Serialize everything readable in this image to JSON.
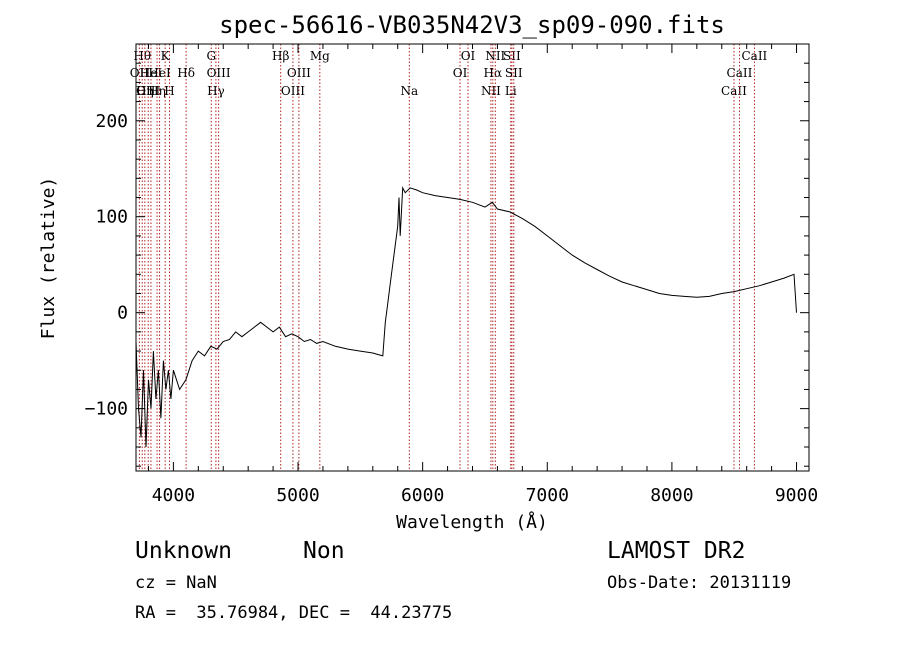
{
  "chart_data": {
    "type": "line",
    "title": "spec-56616-VB035N42V3_sp09-090.fits",
    "xlabel": "Wavelength (Å)",
    "ylabel": "Flux (relative)",
    "xlim": [
      3700,
      9100
    ],
    "ylim": [
      -165,
      280
    ],
    "xticks": [
      4000,
      5000,
      6000,
      7000,
      8000,
      9000
    ],
    "yticks": [
      -100,
      0,
      100,
      200
    ],
    "x_tick_labels": [
      "4000",
      "5000",
      "6000",
      "7000",
      "8000",
      "9000"
    ],
    "y_tick_labels": [
      "−100",
      "0",
      "100",
      "200"
    ],
    "grid": false,
    "line_color": "#000000",
    "marker_color": "#b22222",
    "spectrum": {
      "x": [
        3700,
        3720,
        3740,
        3760,
        3780,
        3800,
        3820,
        3840,
        3860,
        3880,
        3900,
        3920,
        3940,
        3960,
        3980,
        4000,
        4050,
        4100,
        4150,
        4200,
        4250,
        4300,
        4350,
        4400,
        4450,
        4500,
        4550,
        4600,
        4650,
        4700,
        4750,
        4800,
        4850,
        4900,
        4950,
        5000,
        5050,
        5100,
        5150,
        5200,
        5300,
        5400,
        5500,
        5600,
        5680,
        5700,
        5720,
        5740,
        5760,
        5780,
        5800,
        5810,
        5820,
        5840,
        5860,
        5900,
        5950,
        6000,
        6100,
        6200,
        6300,
        6400,
        6500,
        6560,
        6600,
        6700,
        6800,
        6900,
        7000,
        7100,
        7200,
        7300,
        7400,
        7500,
        7600,
        7700,
        7800,
        7900,
        8000,
        8100,
        8200,
        8300,
        8400,
        8500,
        8600,
        8700,
        8800,
        8900,
        8980,
        9000
      ],
      "y": [
        -30,
        -100,
        -130,
        -60,
        -140,
        -70,
        -100,
        -40,
        -90,
        -60,
        -110,
        -50,
        -80,
        -60,
        -90,
        -60,
        -80,
        -70,
        -50,
        -40,
        -45,
        -35,
        -38,
        -30,
        -28,
        -20,
        -25,
        -20,
        -15,
        -10,
        -15,
        -20,
        -15,
        -25,
        -22,
        -25,
        -30,
        -28,
        -32,
        -30,
        -35,
        -38,
        -40,
        -42,
        -45,
        -10,
        10,
        30,
        50,
        70,
        90,
        120,
        80,
        130,
        125,
        130,
        128,
        125,
        122,
        120,
        118,
        115,
        110,
        115,
        108,
        105,
        98,
        90,
        80,
        70,
        60,
        52,
        45,
        38,
        32,
        28,
        24,
        20,
        18,
        17,
        16,
        17,
        20,
        22,
        25,
        28,
        32,
        36,
        40,
        0
      ]
    },
    "lines": [
      {
        "x": 3727,
        "label": "OII",
        "row": 1
      },
      {
        "x": 3750,
        "label": "Hθ",
        "row": 0
      },
      {
        "x": 3771,
        "label": "Hη",
        "row": 2
      },
      {
        "x": 3798,
        "label": "OIII",
        "row": 2
      },
      {
        "x": 3820,
        "label": "HeI",
        "row": 1
      },
      {
        "x": 3869,
        "label": "Hη",
        "row": 2
      },
      {
        "x": 3889,
        "label": "HeI",
        "row": 1
      },
      {
        "x": 3934,
        "label": "K",
        "row": 0
      },
      {
        "x": 3969,
        "label": "H",
        "row": 2
      },
      {
        "x": 4102,
        "label": "Hδ",
        "row": 1
      },
      {
        "x": 4304,
        "label": "G",
        "row": 0
      },
      {
        "x": 4341,
        "label": "Hγ",
        "row": 2
      },
      {
        "x": 4363,
        "label": "OIII",
        "row": 1
      },
      {
        "x": 4861,
        "label": "Hβ",
        "row": 0
      },
      {
        "x": 4959,
        "label": "OIII",
        "row": 2
      },
      {
        "x": 5007,
        "label": "OIII",
        "row": 1
      },
      {
        "x": 5175,
        "label": "Mg",
        "row": 0
      },
      {
        "x": 5893,
        "label": "Na",
        "row": 2
      },
      {
        "x": 6300,
        "label": "OI",
        "row": 1
      },
      {
        "x": 6364,
        "label": "OI",
        "row": 0
      },
      {
        "x": 6548,
        "label": "NII",
        "row": 2
      },
      {
        "x": 6563,
        "label": "Hα",
        "row": 1
      },
      {
        "x": 6583,
        "label": "NII",
        "row": 0
      },
      {
        "x": 6716,
        "label": "SII",
        "row": 0
      },
      {
        "x": 6707,
        "label": "Li",
        "row": 2
      },
      {
        "x": 6731,
        "label": "SII",
        "row": 1
      },
      {
        "x": 8498,
        "label": "CaII",
        "row": 2
      },
      {
        "x": 8542,
        "label": "CaII",
        "row": 1
      },
      {
        "x": 8662,
        "label": "CaII",
        "row": 0
      }
    ]
  },
  "info": {
    "class_label": "Unknown",
    "subclass_label": "Non",
    "survey": "LAMOST DR2",
    "redshift": "cz = NaN",
    "obs_date": "Obs-Date: 20131119",
    "coords": "RA =  35.76984, DEC =  44.23775"
  }
}
